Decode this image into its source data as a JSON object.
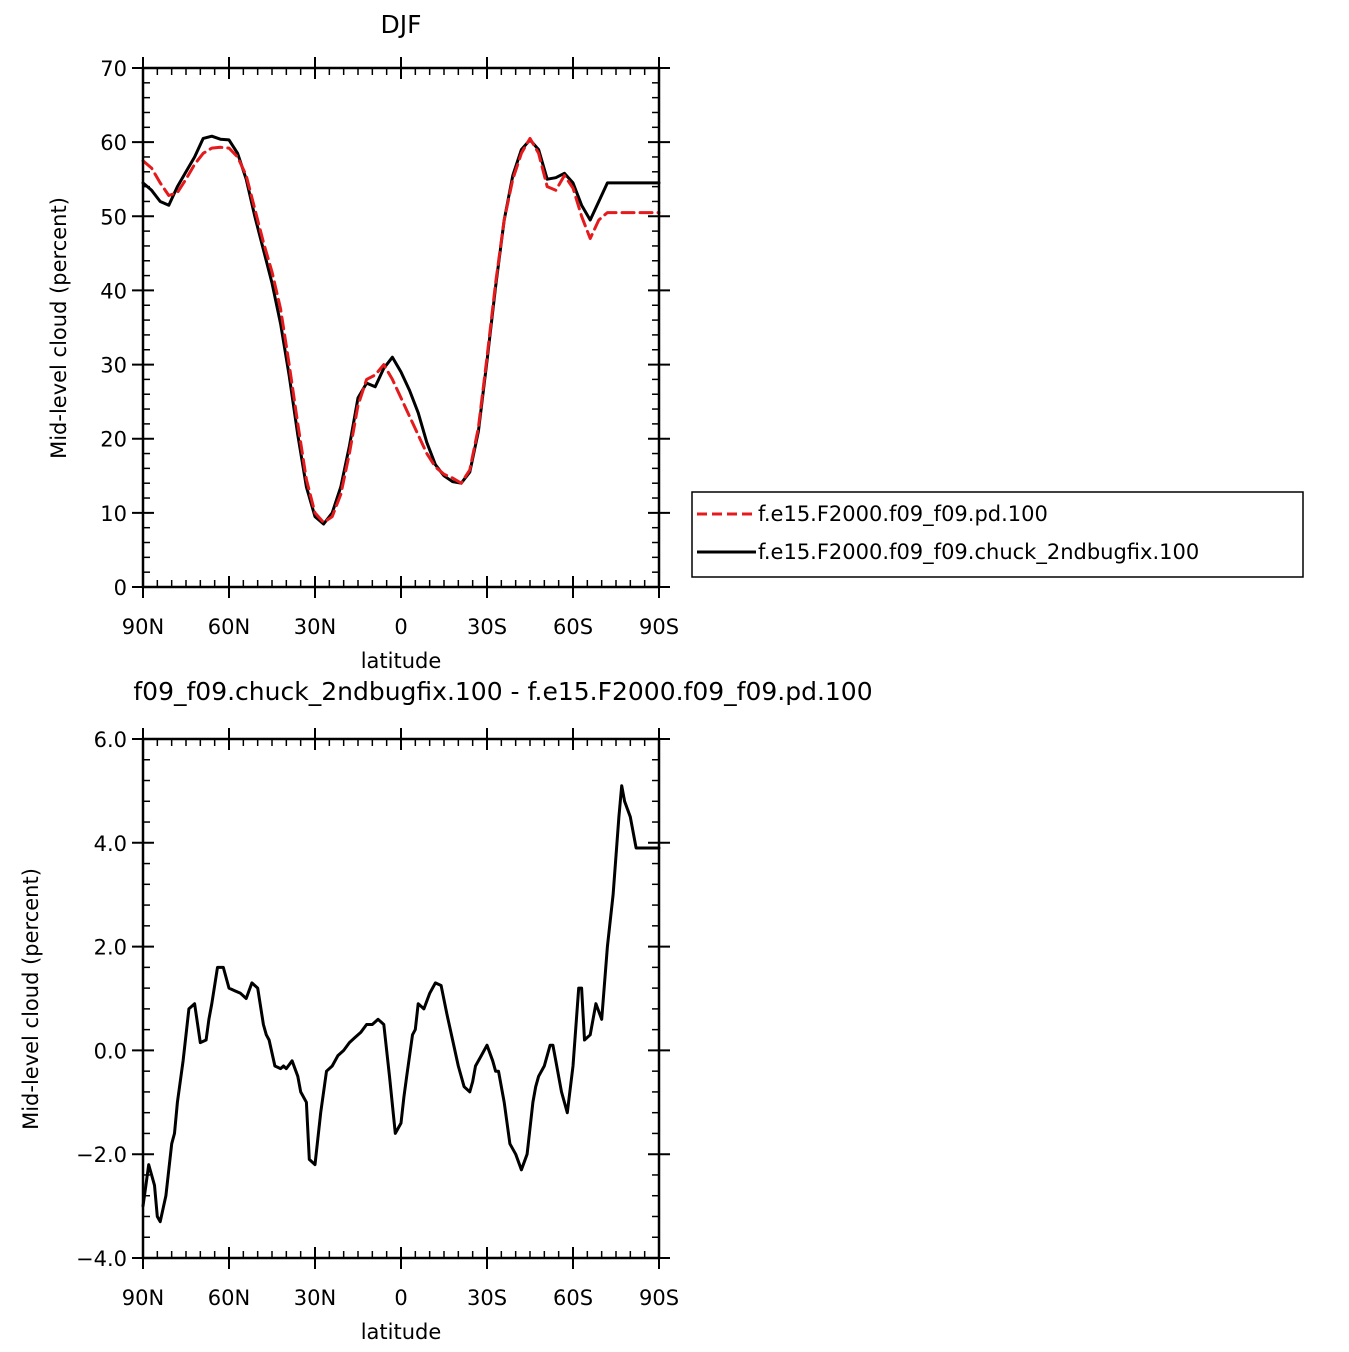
{
  "chart_data": [
    {
      "type": "line",
      "title": "DJF",
      "xlabel": "latitude",
      "ylabel": "Mid-level cloud (percent)",
      "xlim": [
        90,
        -90
      ],
      "ylim": [
        0,
        70
      ],
      "x_ticks": [
        90,
        60,
        30,
        0,
        -30,
        -60,
        -90
      ],
      "x_tick_labels": [
        "90N",
        "60N",
        "30N",
        "0",
        "30S",
        "60S",
        "90S"
      ],
      "y_ticks": [
        0,
        10,
        20,
        30,
        40,
        50,
        60,
        70
      ],
      "y_tick_labels": [
        "0",
        "10",
        "20",
        "30",
        "40",
        "50",
        "60",
        "70"
      ],
      "legend_position": "right",
      "series": [
        {
          "name": "f.e15.F2000.f09_f09.pd.100",
          "color": "#e41a1c",
          "dash": "dashed",
          "x": [
            90,
            87,
            84,
            81,
            78,
            75,
            72,
            69,
            66,
            63,
            60,
            57,
            54,
            51,
            48,
            45,
            42,
            39,
            36,
            33,
            30,
            27,
            24,
            21,
            18,
            15,
            12,
            9,
            6,
            3,
            0,
            -3,
            -6,
            -9,
            -12,
            -15,
            -18,
            -21,
            -24,
            -27,
            -30,
            -33,
            -36,
            -39,
            -42,
            -45,
            -48,
            -51,
            -54,
            -57,
            -60,
            -63,
            -66,
            -69,
            -72,
            -75,
            -78,
            -81,
            -84,
            -87,
            -90
          ],
          "y": [
            57.5,
            56.5,
            54.5,
            52.8,
            53.2,
            55.0,
            57.0,
            58.5,
            59.2,
            59.3,
            59.2,
            58.0,
            55.5,
            51.0,
            46.5,
            42.5,
            37.5,
            30.0,
            22.0,
            14.5,
            10.0,
            8.7,
            9.5,
            12.5,
            18.0,
            24.5,
            28.0,
            28.6,
            30.0,
            28.0,
            25.5,
            23.0,
            20.5,
            18.0,
            16.2,
            15.2,
            14.7,
            14.0,
            15.8,
            21.5,
            31.0,
            41.0,
            49.5,
            55.0,
            58.5,
            60.5,
            58.5,
            54.0,
            53.5,
            55.5,
            53.8,
            50.0,
            47.0,
            49.5,
            50.5,
            50.5,
            50.5,
            50.5,
            50.5,
            50.5,
            50.5
          ]
        },
        {
          "name": "f.e15.F2000.f09_f09.chuck_2ndbugfix.100",
          "color": "#000000",
          "dash": "solid",
          "x": [
            90,
            87,
            84,
            81,
            78,
            75,
            72,
            69,
            66,
            63,
            60,
            57,
            54,
            51,
            48,
            45,
            42,
            39,
            36,
            33,
            30,
            27,
            24,
            21,
            18,
            15,
            12,
            9,
            6,
            3,
            0,
            -3,
            -6,
            -9,
            -12,
            -15,
            -18,
            -21,
            -24,
            -27,
            -30,
            -33,
            -36,
            -39,
            -42,
            -45,
            -48,
            -51,
            -54,
            -57,
            -60,
            -63,
            -66,
            -69,
            -72,
            -75,
            -78,
            -81,
            -84,
            -87,
            -90
          ],
          "y": [
            54.5,
            53.5,
            52.0,
            51.5,
            54.0,
            56.0,
            58.0,
            60.5,
            60.8,
            60.4,
            60.3,
            58.5,
            55.0,
            50.0,
            45.5,
            41.0,
            35.5,
            28.5,
            20.5,
            13.5,
            9.5,
            8.5,
            10.0,
            13.5,
            19.0,
            25.5,
            27.5,
            27.0,
            29.5,
            31.0,
            29.0,
            26.5,
            23.5,
            19.5,
            16.5,
            15.0,
            14.2,
            14.0,
            15.5,
            21.0,
            30.5,
            40.5,
            49.5,
            55.5,
            59.0,
            60.3,
            59.0,
            55.0,
            55.2,
            55.8,
            54.5,
            51.5,
            49.5,
            52.0,
            54.5,
            54.5,
            54.5,
            54.5,
            54.5,
            54.5,
            54.5
          ]
        }
      ]
    },
    {
      "type": "line",
      "title": "f09_f09.chuck_2ndbugfix.100 - f.e15.F2000.f09_f09.pd.100",
      "xlabel": "latitude",
      "ylabel": "Mid-level cloud (percent)",
      "xlim": [
        90,
        -90
      ],
      "ylim": [
        -4.0,
        6.0
      ],
      "x_ticks": [
        90,
        60,
        30,
        0,
        -30,
        -60,
        -90
      ],
      "x_tick_labels": [
        "90N",
        "60N",
        "30N",
        "0",
        "30S",
        "60S",
        "90S"
      ],
      "y_ticks": [
        -4,
        -2,
        0,
        2,
        4,
        6
      ],
      "y_tick_labels": [
        "-4.0",
        "-2.0",
        "0.0",
        "2.0",
        "4.0",
        "6.0"
      ],
      "series": [
        {
          "color": "#000000",
          "dash": "solid",
          "x": [
            90,
            89,
            88,
            86,
            85,
            84,
            82,
            80,
            79,
            78,
            76,
            75,
            74,
            72,
            70,
            68,
            67,
            66,
            64,
            62,
            60,
            58,
            56,
            54,
            52,
            50,
            48,
            47,
            46,
            44,
            42,
            41,
            40,
            38,
            36,
            35,
            33,
            32,
            30,
            28,
            26,
            24,
            22,
            20,
            18,
            16,
            14,
            12,
            10,
            8,
            6,
            4,
            2,
            0,
            -1,
            -2,
            -4,
            -5,
            -6,
            -8,
            -10,
            -12,
            -14,
            -16,
            -18,
            -20,
            -22,
            -24,
            -25,
            -26,
            -28,
            -30,
            -32,
            -33,
            -34,
            -36,
            -38,
            -40,
            -42,
            -44,
            -46,
            -47,
            -48,
            -50,
            -52,
            -53,
            -54,
            -56,
            -58,
            -60,
            -62,
            -63,
            -64,
            -66,
            -68,
            -70,
            -72,
            -74,
            -76,
            -77,
            -78,
            -80,
            -82,
            -84,
            -85,
            -86,
            -87,
            -88,
            -89,
            -90
          ],
          "y": [
            -3.0,
            -2.6,
            -2.2,
            -2.6,
            -3.2,
            -3.3,
            -2.8,
            -1.8,
            -1.6,
            -1.0,
            -0.2,
            0.3,
            0.8,
            0.9,
            0.15,
            0.2,
            0.6,
            0.9,
            1.6,
            1.6,
            1.2,
            1.15,
            1.1,
            1.0,
            1.3,
            1.2,
            0.5,
            0.3,
            0.2,
            -0.3,
            -0.35,
            -0.3,
            -0.35,
            -0.2,
            -0.5,
            -0.8,
            -1.0,
            -2.1,
            -2.2,
            -1.2,
            -0.4,
            -0.3,
            -0.1,
            0.0,
            0.15,
            0.25,
            0.35,
            0.5,
            0.5,
            0.6,
            0.5,
            -0.5,
            -1.6,
            -1.4,
            -0.9,
            -0.5,
            0.3,
            0.4,
            0.9,
            0.8,
            1.1,
            1.3,
            1.25,
            0.7,
            0.2,
            -0.3,
            -0.7,
            -0.8,
            -0.6,
            -0.3,
            -0.1,
            0.1,
            -0.2,
            -0.4,
            -0.4,
            -1.0,
            -1.8,
            -2.0,
            -2.3,
            -2.0,
            -1.0,
            -0.7,
            -0.5,
            -0.3,
            0.1,
            0.1,
            -0.2,
            -0.8,
            -1.2,
            -0.3,
            1.2,
            1.2,
            0.2,
            0.3,
            0.9,
            0.6,
            2.0,
            3.0,
            4.5,
            5.1,
            4.8,
            4.5,
            3.9,
            3.9,
            3.9,
            3.9,
            3.9,
            3.9,
            3.9,
            3.9
          ]
        }
      ]
    }
  ]
}
